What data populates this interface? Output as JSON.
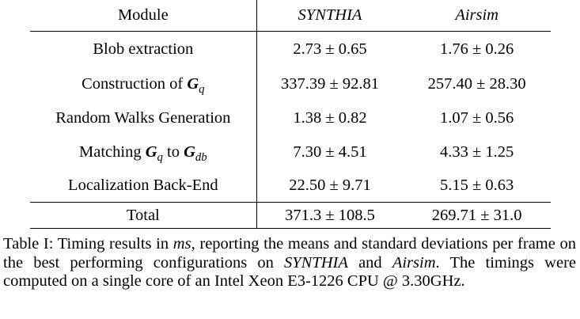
{
  "table": {
    "header": {
      "module": "Module",
      "col1": "SYNTHIA",
      "col2": "Airsim"
    },
    "rows": [
      {
        "module": "Blob extraction",
        "synthia": "2.73 ± 0.65",
        "airsim": "1.76 ± 0.26"
      },
      {
        "module_pre": "Construction of ",
        "sym1": "G",
        "sub1": "q",
        "synthia": "337.39 ± 92.81",
        "airsim": "257.40 ± 28.30"
      },
      {
        "module": "Random Walks Generation",
        "synthia": "1.38 ± 0.82",
        "airsim": "1.07 ± 0.56"
      },
      {
        "module_pre": "Matching ",
        "sym1": "G",
        "sub1": "q",
        "mid": " to ",
        "sym2": "G",
        "sub2": "db",
        "synthia": "7.30 ± 4.51",
        "airsim": "4.33 ± 1.25"
      },
      {
        "module": "Localization Back-End",
        "synthia": "22.50 ± 9.71",
        "airsim": "5.15 ± 0.63"
      }
    ],
    "total": {
      "module": "Total",
      "synthia": "371.3 ± 108.5",
      "airsim": "269.71 ± 31.0"
    }
  },
  "caption": {
    "label": "Table I: Timing results in ",
    "unit": "ms",
    "part2": ", reporting the means and standard deviations per frame on the best performing configurations on ",
    "ds1": "SYNTHIA",
    "and": " and ",
    "ds2": "Airsim",
    "part3": ". The timings were computed on a single core of an Intel Xeon E3-1226 CPU @ 3.30GHz."
  }
}
